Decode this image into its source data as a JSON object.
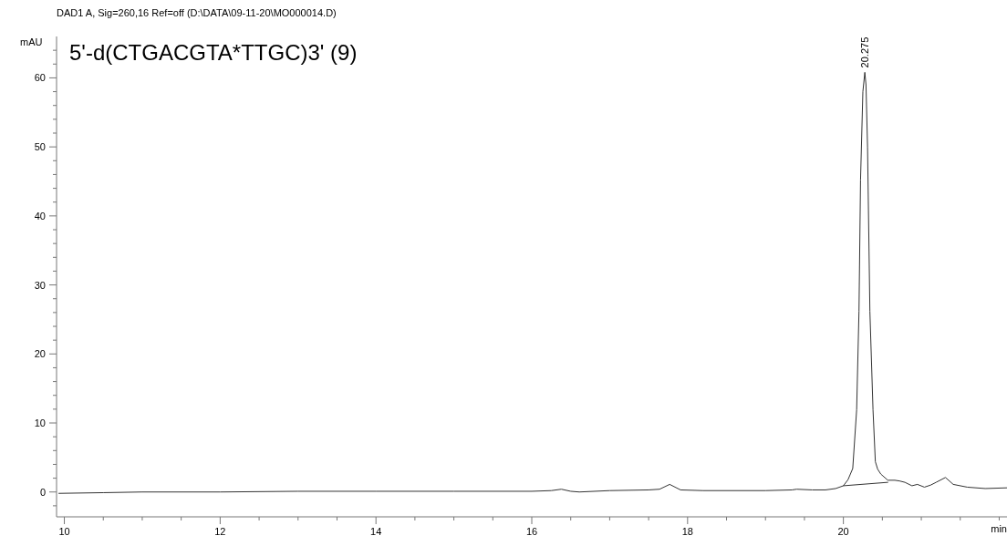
{
  "chart_data": {
    "type": "line",
    "title": "DAD1 A, Sig=260,16 Ref=off (D:\\DATA\\09-11-20\\MO000014.D)",
    "xlabel": "min",
    "ylabel": "mAU",
    "annotations": [
      "5'-d(CTGACGTA*TTGC)3' (9)",
      {
        "text": "20.275",
        "x": 20.275,
        "y": 60.8
      }
    ],
    "series": [
      {
        "color": "#333333",
        "x": [
          9.93,
          10.5,
          11,
          12,
          13,
          14,
          15,
          16,
          16.25,
          16.38,
          16.5,
          16.61,
          17,
          17.5,
          17.64,
          17.77,
          17.91,
          18.2,
          19,
          19.34,
          19.4,
          19.6,
          19.77,
          19.9,
          20.0,
          20.06,
          20.12,
          20.17,
          20.2,
          20.22,
          20.25,
          20.275,
          20.29,
          20.31,
          20.34,
          20.38,
          20.41,
          20.44,
          20.48,
          20.57,
          20.66,
          20.72,
          20.79,
          20.88,
          20.95,
          21.04,
          21.12,
          21.19,
          21.31,
          21.41,
          21.59,
          21.82,
          22.1
        ],
        "values": [
          -0.2,
          -0.1,
          0,
          0,
          0.1,
          0.1,
          0.1,
          0.1,
          0.2,
          0.4,
          0.1,
          0,
          0.2,
          0.3,
          0.4,
          1.1,
          0.3,
          0.2,
          0.2,
          0.3,
          0.4,
          0.3,
          0.3,
          0.5,
          0.9,
          1.8,
          3.4,
          11.9,
          26.2,
          45.2,
          58,
          60.8,
          59,
          50,
          26.2,
          11.9,
          4.4,
          3.3,
          2.6,
          1.7,
          1.7,
          1.6,
          1.4,
          0.9,
          1.1,
          0.7,
          1.0,
          1.4,
          2.1,
          1.1,
          0.7,
          0.5,
          0.6
        ]
      },
      {
        "color": "#333333",
        "x": [
          20.0,
          20.57
        ],
        "values": [
          0.9,
          1.4
        ]
      }
    ],
    "xlim": [
      9.9,
      22.1
    ],
    "ylim": [
      -3.6,
      66
    ],
    "xticks": [
      10,
      {
        "value": 10.5,
        "label": null
      },
      {
        "value": 11,
        "label": null
      },
      {
        "value": 11.5,
        "label": null
      },
      12,
      {
        "value": 12.5,
        "label": null
      },
      {
        "value": 13,
        "label": null
      },
      {
        "value": 13.5,
        "label": null
      },
      14,
      {
        "value": 14.5,
        "label": null
      },
      {
        "value": 15,
        "label": null
      },
      {
        "value": 15.5,
        "label": null
      },
      16,
      {
        "value": 16.5,
        "label": null
      },
      {
        "value": 17,
        "label": null
      },
      {
        "value": 17.5,
        "label": null
      },
      18,
      {
        "value": 18.5,
        "label": null
      },
      {
        "value": 19,
        "label": null
      },
      {
        "value": 19.5,
        "label": null
      },
      20,
      {
        "value": 20.5,
        "label": null
      },
      {
        "value": 21,
        "label": null
      },
      {
        "value": 21.5,
        "label": null
      },
      {
        "value": 22,
        "label": null
      }
    ],
    "yticks": [
      {
        "value": -2,
        "label": null
      },
      0,
      {
        "value": 2,
        "label": null
      },
      {
        "value": 4,
        "label": null
      },
      {
        "value": 6,
        "label": null
      },
      {
        "value": 8,
        "label": null
      },
      10,
      {
        "value": 12,
        "label": null
      },
      {
        "value": 14,
        "label": null
      },
      {
        "value": 16,
        "label": null
      },
      {
        "value": 18,
        "label": null
      },
      20,
      {
        "value": 22,
        "label": null
      },
      {
        "value": 24,
        "label": null
      },
      {
        "value": 26,
        "label": null
      },
      {
        "value": 28,
        "label": null
      },
      30,
      {
        "value": 32,
        "label": null
      },
      {
        "value": 34,
        "label": null
      },
      {
        "value": 36,
        "label": null
      },
      {
        "value": 38,
        "label": null
      },
      40,
      {
        "value": 42,
        "label": null
      },
      {
        "value": 44,
        "label": null
      },
      {
        "value": 46,
        "label": null
      },
      {
        "value": 48,
        "label": null
      },
      50,
      {
        "value": 52,
        "label": null
      },
      {
        "value": 54,
        "label": null
      },
      {
        "value": 56,
        "label": null
      },
      {
        "value": 58,
        "label": null
      },
      60,
      {
        "value": 62,
        "label": null
      },
      {
        "value": 64,
        "label": null
      }
    ],
    "grid": false,
    "marker": "none",
    "line_style": "solid"
  }
}
